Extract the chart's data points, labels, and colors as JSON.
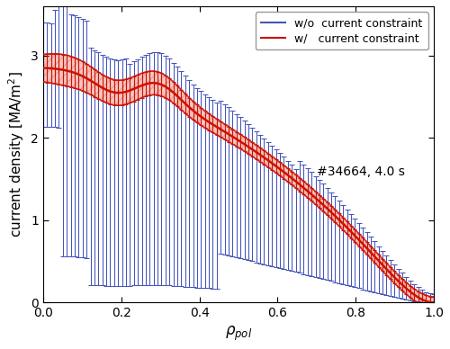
{
  "xlabel": "$\\rho_{pol}$",
  "ylabel": "current density [MA/m$^2$]",
  "annotation": "#34664, 4.0 s",
  "xlim": [
    0.0,
    1.0
  ],
  "ylim": [
    0.0,
    3.6
  ],
  "yticks": [
    0.0,
    1.0,
    2.0,
    3.0
  ],
  "xticks": [
    0.0,
    0.2,
    0.4,
    0.6,
    0.8,
    1.0
  ],
  "blue_color": "#4455bb",
  "red_color": "#cc1100",
  "red_fill_color": "#ee4433",
  "legend_blue": "w/o  current constraint",
  "legend_red": "w/   current constraint",
  "figsize": [
    5.0,
    3.88
  ],
  "dpi": 100
}
